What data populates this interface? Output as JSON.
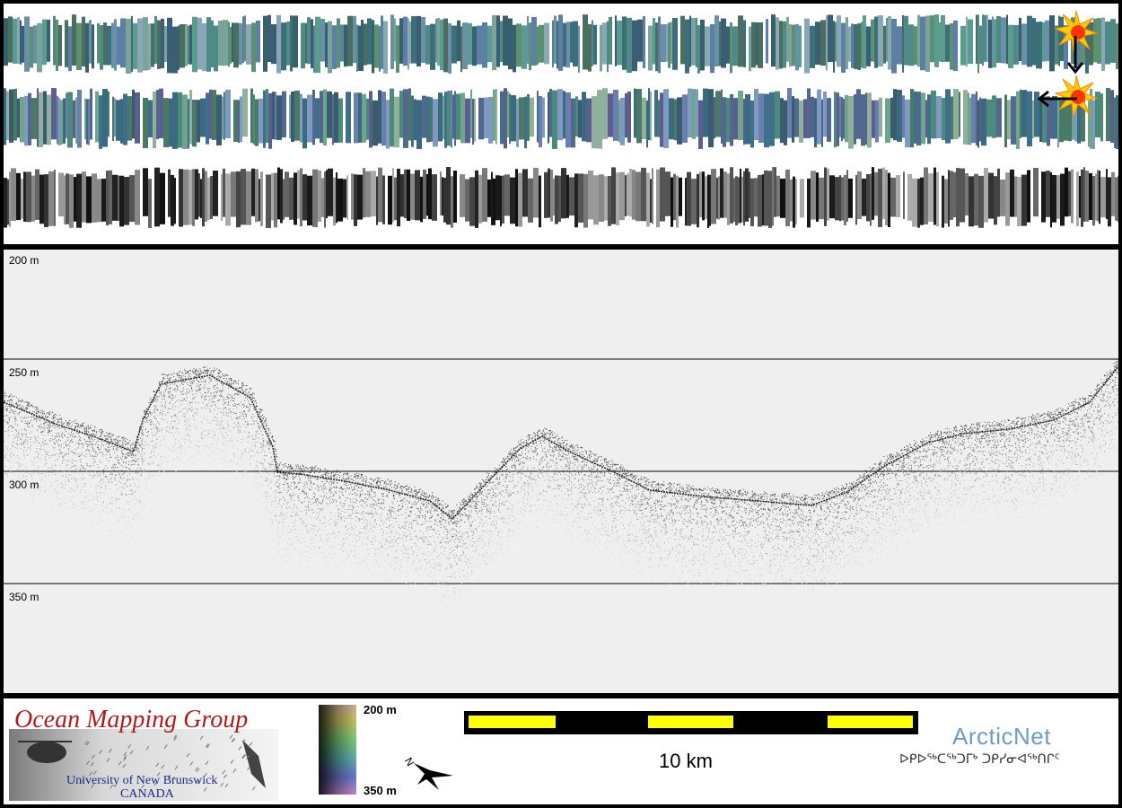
{
  "profile": {
    "depth_labels": [
      "200 m",
      "250 m",
      "300 m",
      "350 m"
    ]
  },
  "footer": {
    "logo_title": "Ocean Mapping Group",
    "logo_university": "University of New Brunswick",
    "logo_country": "CANADA",
    "colorbar_top": "200 m",
    "colorbar_bottom": "350 m",
    "scale_label": "10 km",
    "north_symbol": "N",
    "arcticnet_title": "ArcticNet",
    "arcticnet_syllabics": "ᐅᑭᐅᖅᑕᖅᑐᒥᒃ ᑐᑭᓯᓂᐊᖅᑎᒋᑦ"
  },
  "colors": {
    "background": "#000000",
    "profile_background": "#efefef",
    "scale_bar_yellow": "#ffff00",
    "omg_red": "#b01a1a",
    "omg_blue": "#1d2a8a",
    "arcticnet_blue": "#6e9cc8"
  },
  "icons": {
    "sun_top": "sun-illumination-icon",
    "arrow_down": "arrow-down-icon",
    "arrow_left": "arrow-left-icon",
    "north": "north-arrow-icon"
  }
}
